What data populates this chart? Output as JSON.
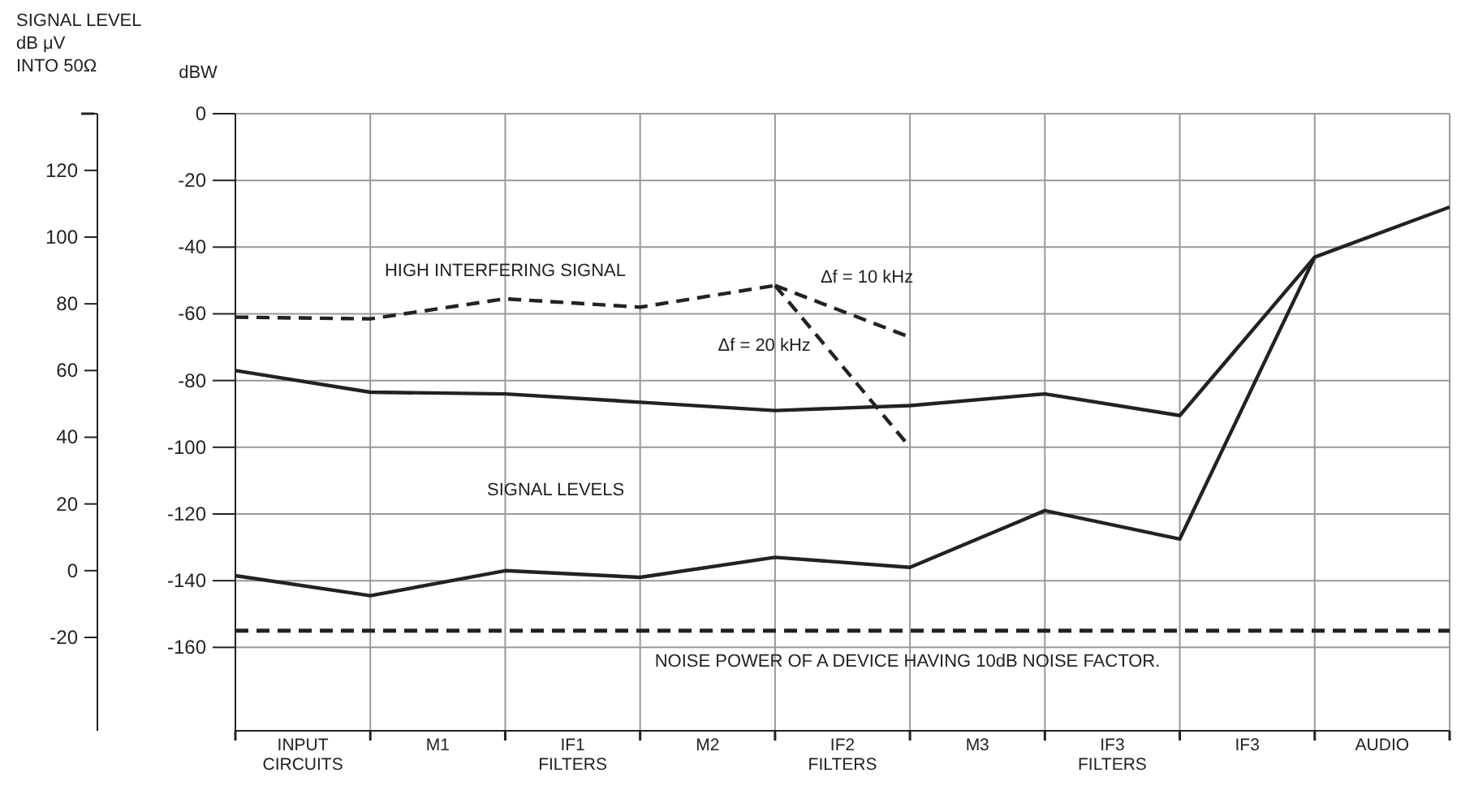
{
  "chart_data": {
    "type": "line",
    "ylabel": "dBW",
    "y2label": "SIGNAL LEVEL\ndB μV\nINTO 50Ω",
    "categories": [
      null,
      "INPUT\nCIRCUITS",
      null,
      "M1",
      null,
      "IF1\nFILTERS",
      null,
      "M2",
      null,
      "IF2\nFILTERS",
      null,
      "M3",
      null,
      "IF3\nFILTERS",
      null,
      "IF3",
      null,
      "AUDIO",
      null
    ],
    "ylim": [
      -185,
      0
    ],
    "yticks": [
      0,
      -20,
      -40,
      -60,
      -80,
      -100,
      -120,
      -140,
      -160
    ],
    "y2lim": [
      -48,
      137
    ],
    "y2ticks": [
      -20,
      0,
      20,
      40,
      60,
      80,
      100,
      120,
      {
        "value": 137,
        "label": null
      }
    ],
    "grid": true,
    "marker": "none",
    "series": [
      {
        "name": "HIGH INTERFERING SIGNAL",
        "color": "#222222",
        "line_style": "dashed",
        "values": [
          -61,
          null,
          -61.5,
          null,
          -55.5,
          null,
          -58,
          null,
          -51.5,
          null,
          null,
          null,
          null,
          null,
          null,
          null,
          null,
          null,
          null
        ]
      },
      {
        "name": "Δf = 10 kHz",
        "color": "#222222",
        "line_style": "dashed",
        "values": [
          null,
          null,
          null,
          null,
          null,
          null,
          null,
          null,
          -51.5,
          null,
          -67,
          null,
          null,
          null,
          null,
          null,
          null,
          null,
          null
        ]
      },
      {
        "name": "Δf = 20 kHz",
        "color": "#222222",
        "line_style": "dashed",
        "values": [
          null,
          null,
          null,
          null,
          null,
          null,
          null,
          null,
          -51.5,
          null,
          -100,
          null,
          null,
          null,
          null,
          null,
          null,
          null,
          null
        ]
      },
      {
        "color": "#222222",
        "line_style": "solid",
        "values": [
          -77,
          null,
          -83.5,
          null,
          -84,
          null,
          -86.5,
          null,
          -89,
          null,
          -87.5,
          null,
          -84,
          null,
          -90.5,
          null,
          -43,
          null,
          -28
        ]
      },
      {
        "color": "#222222",
        "line_style": "solid",
        "values": [
          -138.5,
          null,
          -144.5,
          null,
          -137,
          null,
          -139,
          null,
          -133,
          null,
          -136,
          null,
          -119,
          null,
          -127.5,
          null,
          -43,
          null,
          null
        ]
      }
    ],
    "ref_lines": [
      {
        "axis": "y",
        "value": -155,
        "label": "NOISE POWER OF A DEVICE HAVING 10dB NOISE FACTOR.",
        "color": "#222222",
        "line_style": "dashed"
      }
    ],
    "annotations": [
      "SIGNAL LEVELS"
    ]
  }
}
